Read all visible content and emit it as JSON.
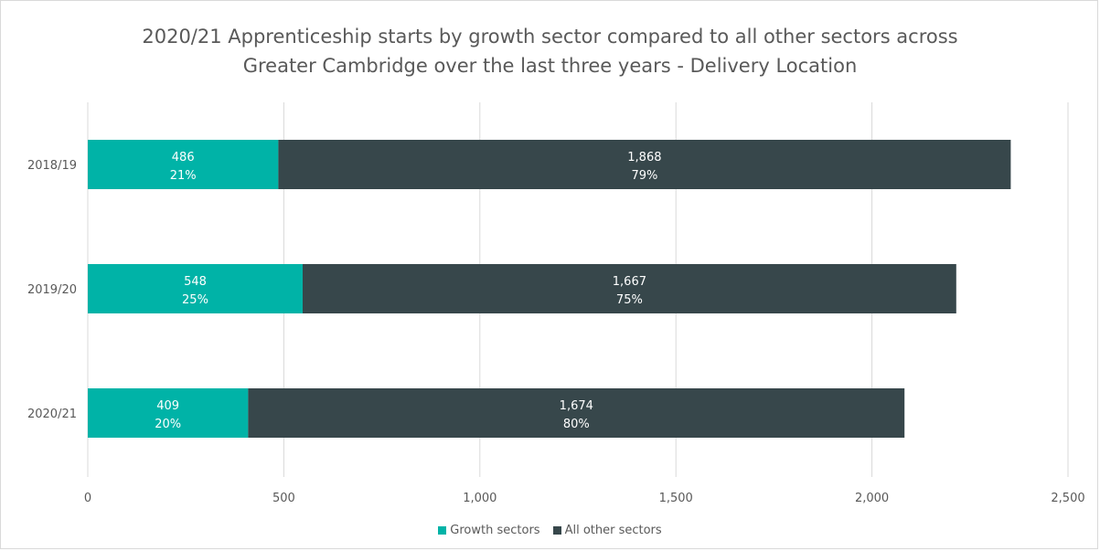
{
  "chart_data": {
    "type": "bar",
    "orientation": "horizontal",
    "stacked": true,
    "title_lines": [
      "2020/21 Apprenticeship starts by growth sector compared to all other sectors across",
      "Greater Cambridge over the last three years - Delivery Location"
    ],
    "categories": [
      "2018/19",
      "2019/20",
      "2020/21"
    ],
    "series": [
      {
        "name": "Growth sectors",
        "color": "#00b3a7",
        "values": [
          486,
          548,
          409
        ],
        "value_labels": [
          "486",
          "548",
          "409"
        ],
        "pct_labels": [
          "21%",
          "25%",
          "20%"
        ]
      },
      {
        "name": "All other sectors",
        "color": "#37474b",
        "values": [
          1868,
          1667,
          1674
        ],
        "value_labels": [
          "1,868",
          "1,667",
          "1,674"
        ],
        "pct_labels": [
          "79%",
          "75%",
          "80%"
        ]
      }
    ],
    "xlim": [
      0,
      2500
    ],
    "xticks": [
      0,
      500,
      1000,
      1500,
      2000,
      2500
    ],
    "xtick_labels": [
      "0",
      "500",
      "1,000",
      "1,500",
      "2,000",
      "2,500"
    ],
    "grid": "vertical",
    "legend_position": "bottom"
  }
}
